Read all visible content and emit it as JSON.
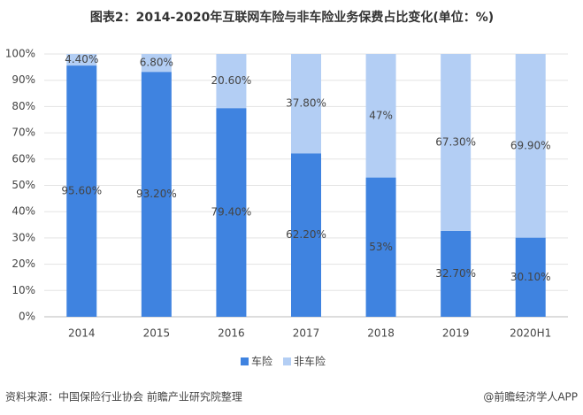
{
  "chart_data": {
    "type": "stacked_bar",
    "title": "图表2：2014-2020年互联网车险与非车险业务保费占比变化(单位：%)",
    "categories": [
      "2014",
      "2015",
      "2016",
      "2017",
      "2018",
      "2019",
      "2020H1"
    ],
    "series": [
      {
        "name": "车险",
        "color": "#3f83e0",
        "values": [
          95.6,
          93.2,
          79.4,
          62.2,
          53,
          32.7,
          30.1
        ],
        "value_labels": [
          "95.60%",
          "93.20%",
          "79.40%",
          "62.20%",
          "53%",
          "32.70%",
          "30.10%"
        ]
      },
      {
        "name": "非车险",
        "color": "#b3cef4",
        "values": [
          4.4,
          6.8,
          20.6,
          37.8,
          47,
          67.3,
          69.9
        ],
        "value_labels": [
          "4.40%",
          "6.80%",
          "20.60%",
          "37.80%",
          "47%",
          "67.30%",
          "69.90%"
        ]
      }
    ],
    "ylim": [
      0,
      100
    ],
    "yticks": [
      {
        "value": 0,
        "label": "0%"
      },
      {
        "value": 10,
        "label": "10%"
      },
      {
        "value": 20,
        "label": "20%"
      },
      {
        "value": 30,
        "label": "30%"
      },
      {
        "value": 40,
        "label": "40%"
      },
      {
        "value": 50,
        "label": "50%"
      },
      {
        "value": 60,
        "label": "60%"
      },
      {
        "value": 70,
        "label": "70%"
      },
      {
        "value": 80,
        "label": "80%"
      },
      {
        "value": 90,
        "label": "90%"
      },
      {
        "value": 100,
        "label": "100%"
      }
    ],
    "grid": true,
    "legend": "bottom",
    "source": "资料来源：中国保险行业协会 前瞻产业研究院整理",
    "credit": "@前瞻经济学人APP"
  }
}
